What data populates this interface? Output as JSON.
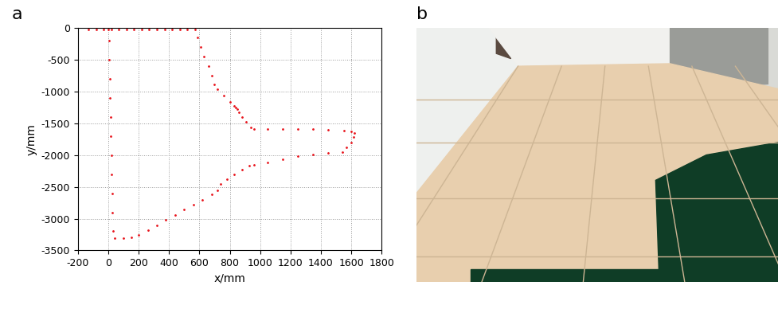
{
  "chart_data": {
    "type": "scatter",
    "x_label": "x/mm",
    "y_label": "y/mm",
    "xlim": [
      -200,
      1800
    ],
    "ylim": [
      -3500,
      0
    ],
    "xticks": [
      -200,
      0,
      200,
      400,
      600,
      800,
      1000,
      1200,
      1400,
      1600,
      1800
    ],
    "yticks": [
      -3500,
      -3000,
      -2500,
      -2000,
      -1500,
      -1000,
      -500,
      0
    ],
    "grid": true,
    "marker": "dot",
    "color": "#e8141c",
    "x": [
      -130,
      -80,
      -30,
      20,
      70,
      120,
      170,
      220,
      270,
      320,
      370,
      420,
      470,
      520,
      570,
      590,
      610,
      630,
      660,
      680,
      700,
      720,
      760,
      800,
      830,
      850,
      840,
      860,
      880,
      910,
      940,
      960,
      1050,
      1150,
      1250,
      1350,
      1450,
      1550,
      1600,
      1620,
      1615,
      1600,
      1570,
      1540,
      1450,
      1350,
      1250,
      1150,
      1050,
      960,
      930,
      880,
      830,
      780,
      740,
      720,
      680,
      620,
      560,
      500,
      440,
      380,
      320,
      260,
      200,
      150,
      100,
      40,
      30,
      28,
      25,
      22,
      20,
      17,
      15,
      12,
      10,
      7,
      5,
      0
    ],
    "y": [
      -20,
      -20,
      -20,
      -20,
      -20,
      -20,
      -20,
      -20,
      -20,
      -20,
      -20,
      -20,
      -20,
      -20,
      -20,
      -150,
      -300,
      -450,
      -600,
      -750,
      -880,
      -960,
      -1060,
      -1160,
      -1220,
      -1280,
      -1250,
      -1320,
      -1400,
      -1480,
      -1560,
      -1590,
      -1590,
      -1590,
      -1585,
      -1590,
      -1600,
      -1610,
      -1620,
      -1650,
      -1720,
      -1800,
      -1880,
      -1950,
      -1970,
      -1990,
      -2020,
      -2060,
      -2110,
      -2150,
      -2170,
      -2230,
      -2300,
      -2380,
      -2460,
      -2550,
      -2620,
      -2700,
      -2780,
      -2860,
      -2940,
      -3020,
      -3100,
      -3180,
      -3260,
      -3300,
      -3310,
      -3310,
      -3200,
      -2900,
      -2600,
      -2300,
      -2000,
      -1700,
      -1400,
      -1100,
      -800,
      -500,
      -200,
      -20
    ]
  },
  "panel_labels": [
    "a",
    "b"
  ]
}
